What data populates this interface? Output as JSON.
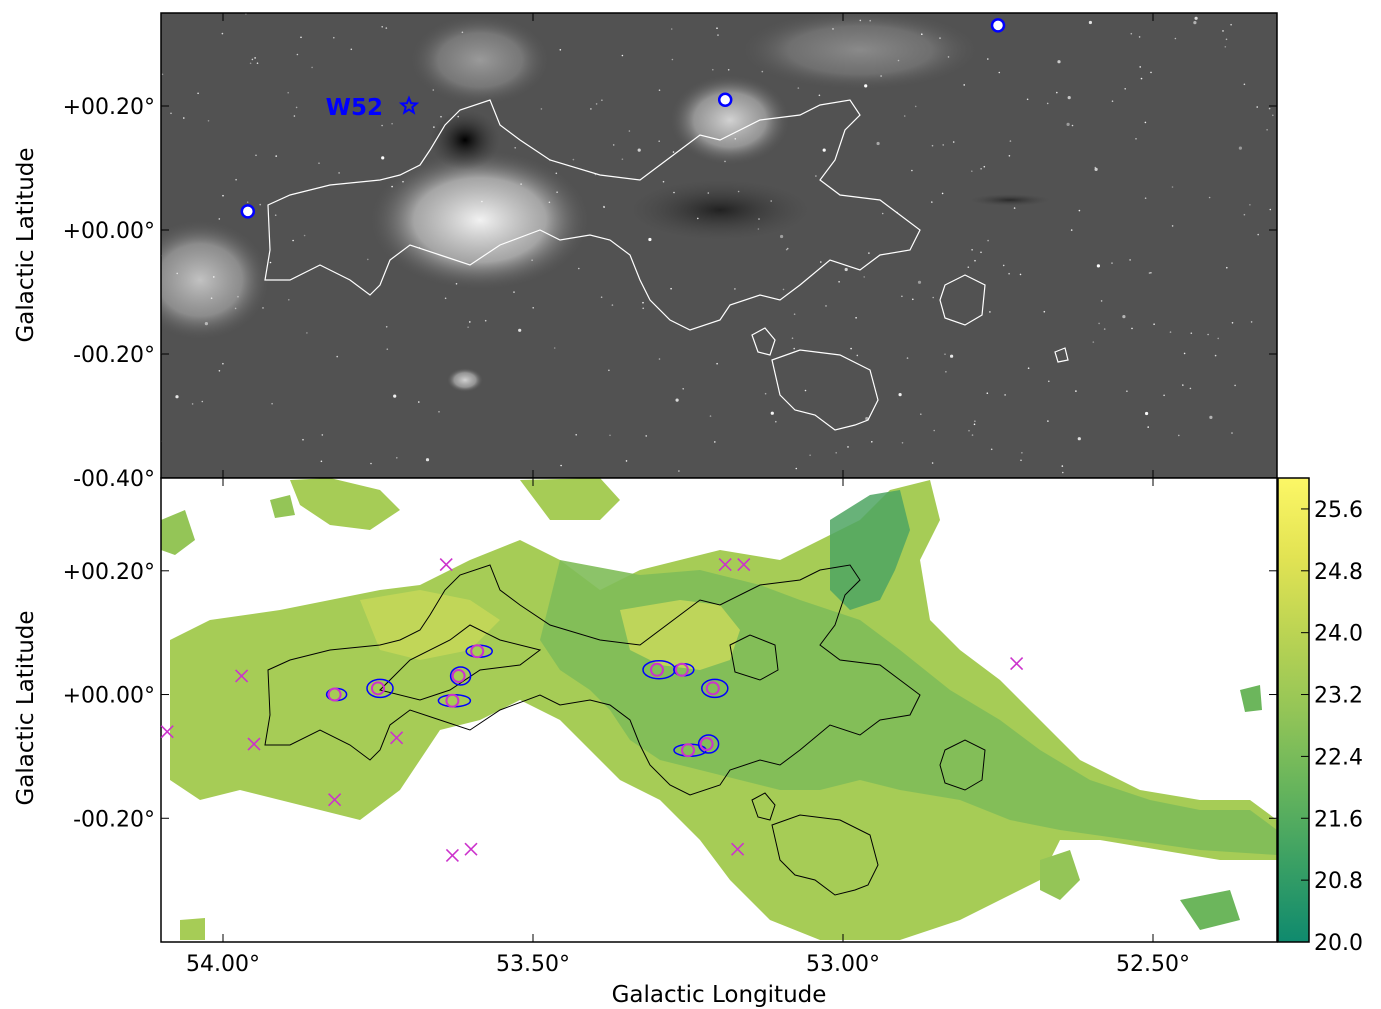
{
  "figure": {
    "xlabel": "Galactic Longitude",
    "colors": {
      "background": "#ffffff",
      "frame": "#000000",
      "contour_top": "#ffffff",
      "contour_bottom": "#000000",
      "dense_contour": "#0000ff",
      "marker_circle_blue": "#0000ff",
      "marker_circle_magenta": "#cc33cc",
      "marker_x": "#cc33cc",
      "w52_label": "#0000ff"
    }
  },
  "chart_data": [
    {
      "type": "image",
      "panel": "top",
      "description_visible": "grayscale infrared image",
      "ylabel": "Galactic Latitude",
      "xlim": [
        54.1,
        52.3
      ],
      "ylim": [
        -0.4,
        0.35
      ],
      "yticks": [
        0.2,
        0.0,
        -0.2,
        -0.4
      ],
      "ytick_labels": [
        "+00.20°",
        "+00.00°",
        "-00.20°",
        "-00.40°"
      ],
      "annotations": [
        {
          "text": "W52",
          "marker": "star",
          "l": 53.7,
          "b": 0.2
        }
      ],
      "circles": [
        {
          "l": 53.96,
          "b": 0.03
        },
        {
          "l": 53.19,
          "b": 0.21
        },
        {
          "l": 52.75,
          "b": 0.33
        }
      ],
      "contour_color": "white"
    },
    {
      "type": "heatmap",
      "panel": "bottom",
      "ylabel": "Galactic Latitude",
      "xlabel": "Galactic Longitude",
      "xlim": [
        54.1,
        52.3
      ],
      "ylim": [
        -0.4,
        0.35
      ],
      "xticks": [
        54.0,
        53.5,
        53.0,
        52.5
      ],
      "xtick_labels": [
        "54.00°",
        "53.50°",
        "53.00°",
        "52.50°"
      ],
      "yticks": [
        0.2,
        0.0,
        -0.2
      ],
      "ytick_labels": [
        "+00.20°",
        "+00.00°",
        "-00.20°"
      ],
      "colorbar": {
        "range": [
          20.0,
          26.0
        ],
        "ticks": [
          20.0,
          20.8,
          21.6,
          22.4,
          23.2,
          24.0,
          24.8,
          25.6
        ],
        "tick_labels": [
          "20.0",
          "20.8",
          "21.6",
          "22.4",
          "23.2",
          "24.0",
          "24.8",
          "25.6"
        ],
        "colors": [
          "#0f8a6e",
          "#3aa064",
          "#66b45c",
          "#94c557",
          "#bcd453",
          "#e2e353",
          "#fcf766"
        ]
      },
      "x_markers": [
        {
          "l": 53.97,
          "b": 0.03
        },
        {
          "l": 53.95,
          "b": -0.08
        },
        {
          "l": 54.09,
          "b": -0.06
        },
        {
          "l": 53.82,
          "b": -0.17
        },
        {
          "l": 53.72,
          "b": -0.07
        },
        {
          "l": 53.64,
          "b": 0.21
        },
        {
          "l": 53.63,
          "b": -0.26
        },
        {
          "l": 53.6,
          "b": -0.25
        },
        {
          "l": 53.19,
          "b": 0.21
        },
        {
          "l": 53.16,
          "b": 0.21
        },
        {
          "l": 53.17,
          "b": -0.25
        },
        {
          "l": 52.72,
          "b": 0.05
        }
      ],
      "circles": [
        {
          "l": 53.82,
          "b": 0.0
        },
        {
          "l": 53.75,
          "b": 0.01
        },
        {
          "l": 53.63,
          "b": -0.01
        },
        {
          "l": 53.62,
          "b": 0.03
        },
        {
          "l": 53.59,
          "b": 0.07
        },
        {
          "l": 53.3,
          "b": 0.04
        },
        {
          "l": 53.26,
          "b": 0.04
        },
        {
          "l": 53.21,
          "b": 0.01
        },
        {
          "l": 53.25,
          "b": -0.09
        },
        {
          "l": 53.22,
          "b": -0.08
        }
      ]
    }
  ]
}
